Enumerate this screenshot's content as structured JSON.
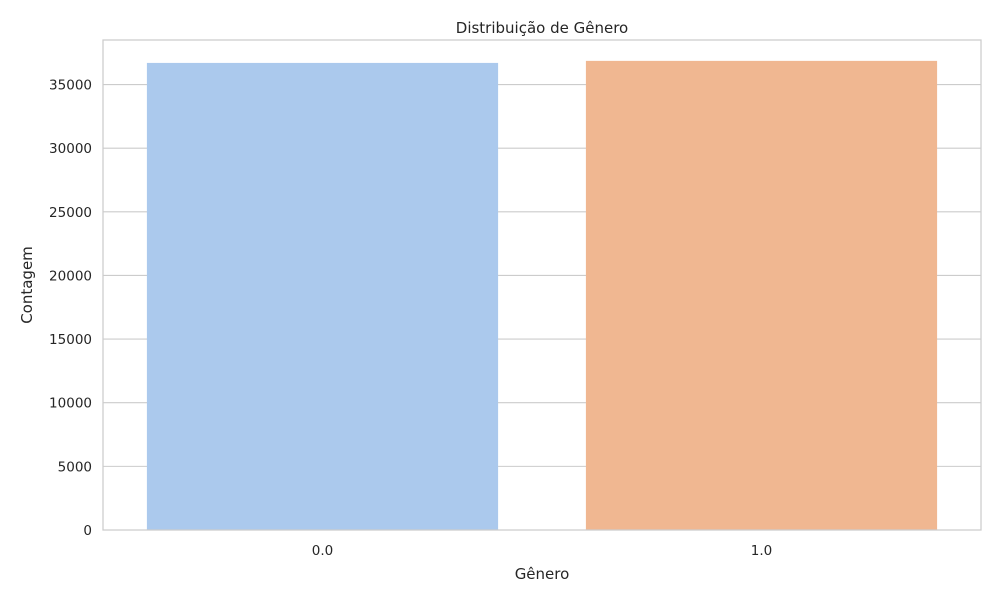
{
  "chart_data": {
    "type": "bar",
    "title": "Distribuição de Gênero",
    "xlabel": "Gênero",
    "ylabel": "Contagem",
    "categories": [
      "0.0",
      "1.0"
    ],
    "values": [
      36700,
      36860
    ],
    "colors": [
      "#abc9ed",
      "#f0b791"
    ],
    "ylim": [
      0,
      38500
    ],
    "yticks": [
      0,
      5000,
      10000,
      15000,
      20000,
      25000,
      30000,
      35000
    ],
    "ytick_labels": [
      "0",
      "5000",
      "10000",
      "15000",
      "20000",
      "25000",
      "30000",
      "35000"
    ],
    "grid": "horizontal",
    "legend": "none"
  }
}
